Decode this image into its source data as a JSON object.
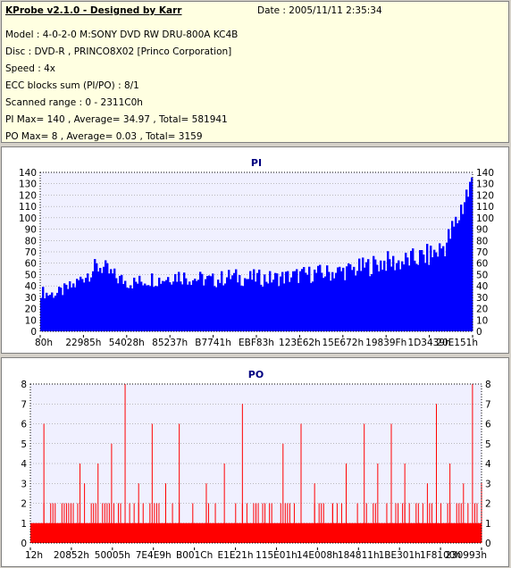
{
  "info": {
    "title": "KProbe v2.1.0 - Designed by Karr",
    "date": "Date : 2005/11/11 2:35:34",
    "model": "Model : 4-0-2-0 M:SONY    DVD RW DRU-800A  KC4B",
    "disc": "Disc : DVD-R , PRINCO8X02 [Princo Corporation]",
    "speed": "Speed : 4x",
    "ecc": "ECC blocks sum (PI/PO) : 8/1",
    "range": "Scanned range : 0 - 2311C0h",
    "pi": "PI Max= 140 , Average= 34.97 , Total= 581941",
    "po": "PO Max= 8 , Average= 0.03 , Total= 3159"
  },
  "chart_data": [
    {
      "type": "bar",
      "title": "PI",
      "ylim": [
        0,
        140
      ],
      "yticks": [
        0,
        10,
        20,
        30,
        40,
        50,
        60,
        70,
        80,
        90,
        100,
        110,
        120,
        130,
        140
      ],
      "xticks": [
        "80h",
        "22985h",
        "54028h",
        "85237h",
        "B7741h",
        "EBF83h",
        "123E62h",
        "15E672h",
        "19839Fh",
        "1D3439h",
        "20E151h"
      ],
      "series_color": "#0000ff",
      "x": [
        0,
        2,
        4,
        6,
        8,
        10,
        12,
        14,
        16,
        18,
        20,
        22,
        24,
        26,
        28,
        30,
        32,
        34,
        36,
        38,
        40,
        42,
        44,
        46,
        48,
        50,
        52,
        54,
        56,
        58,
        60,
        62,
        64,
        66,
        68,
        70,
        72,
        74,
        76,
        78,
        80,
        82,
        84,
        86,
        88,
        90,
        92,
        94,
        96,
        97,
        98,
        99,
        100
      ],
      "values": [
        38,
        35,
        36,
        40,
        44,
        52,
        58,
        62,
        55,
        50,
        47,
        46,
        48,
        50,
        49,
        52,
        53,
        51,
        50,
        49,
        48,
        50,
        52,
        51,
        50,
        51,
        50,
        50,
        51,
        52,
        53,
        54,
        55,
        55,
        56,
        57,
        58,
        60,
        62,
        64,
        66,
        65,
        66,
        68,
        70,
        72,
        76,
        84,
        100,
        112,
        125,
        132,
        138
      ]
    },
    {
      "type": "bar",
      "title": "PO",
      "ylim": [
        0,
        8
      ],
      "yticks": [
        0,
        1,
        2,
        3,
        4,
        5,
        6,
        7,
        8
      ],
      "xticks": [
        "12h",
        "20852h",
        "50005h",
        "7E4E9h",
        "B001Ch",
        "E1E21h",
        "115E01h",
        "14E008h",
        "184811h",
        "1BE301h",
        "1F8100h",
        "230993h"
      ],
      "series_color": "#ff0000",
      "spikes": [
        [
          3,
          6
        ],
        [
          7,
          2
        ],
        [
          11,
          4
        ],
        [
          12,
          3
        ],
        [
          15,
          4
        ],
        [
          18,
          5
        ],
        [
          21,
          8
        ],
        [
          24,
          3
        ],
        [
          27,
          6
        ],
        [
          30,
          3
        ],
        [
          33,
          6
        ],
        [
          36,
          2
        ],
        [
          39,
          3
        ],
        [
          43,
          4
        ],
        [
          47,
          7
        ],
        [
          52,
          2
        ],
        [
          56,
          5
        ],
        [
          60,
          6
        ],
        [
          63,
          3
        ],
        [
          67,
          2
        ],
        [
          70,
          4
        ],
        [
          74,
          6
        ],
        [
          77,
          4
        ],
        [
          80,
          6
        ],
        [
          83,
          4
        ],
        [
          86,
          2
        ],
        [
          88,
          3
        ],
        [
          90,
          7
        ],
        [
          93,
          4
        ],
        [
          96,
          3
        ],
        [
          98,
          8
        ],
        [
          100,
          3
        ]
      ]
    }
  ]
}
